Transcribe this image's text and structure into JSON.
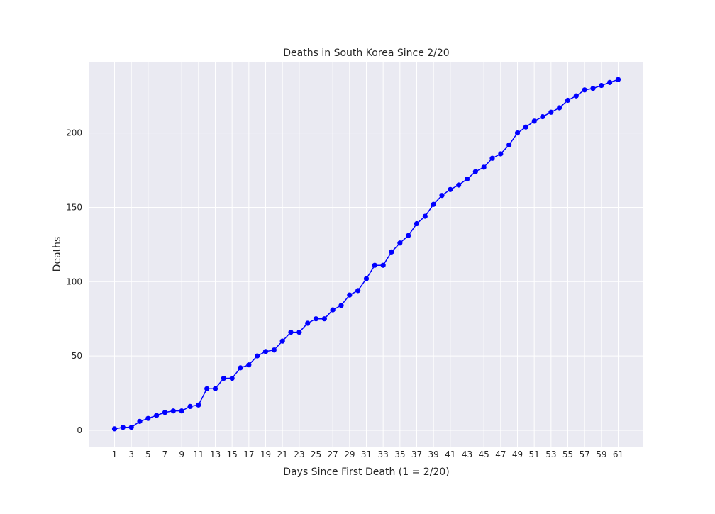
{
  "chart_data": {
    "type": "line",
    "title": "Deaths in South Korea Since 2/20",
    "xlabel": "Days Since First Death (1 = 2/20)",
    "ylabel": "Deaths",
    "xlim": [
      -2.0,
      64.0
    ],
    "ylim": [
      -11.0,
      248.0
    ],
    "xticks": [
      1,
      3,
      5,
      7,
      9,
      11,
      13,
      15,
      17,
      19,
      21,
      23,
      25,
      27,
      29,
      31,
      33,
      35,
      37,
      39,
      41,
      43,
      45,
      47,
      49,
      51,
      53,
      55,
      57,
      59,
      61
    ],
    "yticks": [
      0,
      50,
      100,
      150,
      200
    ],
    "grid": true,
    "colors": {
      "plot_background": "#eaeaf2",
      "grid": "#ffffff",
      "series": "#0000ff"
    },
    "series": [
      {
        "name": "",
        "x": [
          1,
          2,
          3,
          4,
          5,
          6,
          7,
          8,
          9,
          10,
          11,
          12,
          13,
          14,
          15,
          16,
          17,
          18,
          19,
          20,
          21,
          22,
          23,
          24,
          25,
          26,
          27,
          28,
          29,
          30,
          31,
          32,
          33,
          34,
          35,
          36,
          37,
          38,
          39,
          40,
          41,
          42,
          43,
          44,
          45,
          46,
          47,
          48,
          49,
          50,
          51,
          52,
          53,
          54,
          55,
          56,
          57,
          58,
          59,
          60,
          61
        ],
        "y": [
          1,
          2,
          2,
          6,
          8,
          10,
          12,
          13,
          13,
          16,
          17,
          28,
          28,
          35,
          35,
          42,
          44,
          50,
          53,
          54,
          60,
          66,
          66,
          72,
          75,
          75,
          81,
          84,
          91,
          94,
          102,
          111,
          111,
          120,
          126,
          131,
          139,
          144,
          152,
          158,
          162,
          165,
          169,
          174,
          177,
          183,
          186,
          192,
          200,
          204,
          208,
          211,
          214,
          217,
          222,
          225,
          229,
          230,
          232,
          234,
          236
        ]
      }
    ]
  }
}
